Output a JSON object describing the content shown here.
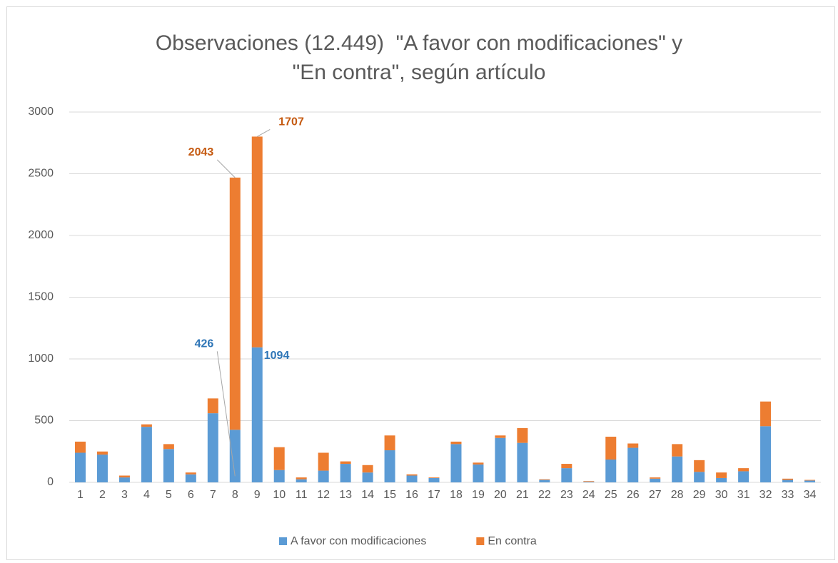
{
  "chart_data": {
    "type": "stacked_bar",
    "title": "Observaciones (12.449)  \"A favor con modificaciones\" y \"En contra\", según artículo",
    "categories": [
      "1",
      "2",
      "3",
      "4",
      "5",
      "6",
      "7",
      "8",
      "9",
      "10",
      "11",
      "12",
      "13",
      "14",
      "15",
      "16",
      "17",
      "18",
      "19",
      "20",
      "21",
      "22",
      "23",
      "24",
      "25",
      "26",
      "27",
      "28",
      "29",
      "30",
      "31",
      "32",
      "33",
      "34"
    ],
    "series": [
      {
        "name": "A favor con modificaciones",
        "color": "#5b9bd5",
        "label_color": "#2e75b6",
        "values": [
          240,
          225,
          40,
          450,
          270,
          65,
          560,
          426,
          1094,
          100,
          25,
          95,
          150,
          80,
          260,
          55,
          35,
          310,
          145,
          360,
          320,
          20,
          115,
          5,
          185,
          280,
          30,
          210,
          85,
          35,
          90,
          455,
          20,
          15
        ],
        "value_labels": [
          null,
          null,
          null,
          null,
          null,
          null,
          null,
          "426",
          "1094",
          null,
          null,
          null,
          null,
          null,
          null,
          null,
          null,
          null,
          null,
          null,
          null,
          null,
          null,
          null,
          null,
          null,
          null,
          null,
          null,
          null,
          null,
          null,
          null,
          null
        ]
      },
      {
        "name": "En contra",
        "color": "#ed7d31",
        "label_color": "#c55a11",
        "values": [
          90,
          25,
          15,
          20,
          40,
          15,
          120,
          2043,
          1707,
          185,
          15,
          145,
          20,
          60,
          120,
          10,
          5,
          20,
          15,
          20,
          120,
          5,
          35,
          5,
          185,
          35,
          10,
          100,
          95,
          45,
          25,
          200,
          10,
          5
        ],
        "value_labels": [
          null,
          null,
          null,
          null,
          null,
          null,
          null,
          "2043",
          "1707",
          null,
          null,
          null,
          null,
          null,
          null,
          null,
          null,
          null,
          null,
          null,
          null,
          null,
          null,
          null,
          null,
          null,
          null,
          null,
          null,
          null,
          null,
          null,
          null,
          null
        ]
      }
    ],
    "ylim": [
      0,
      3000
    ],
    "yticks": [
      0,
      500,
      1000,
      1500,
      2000,
      2500,
      3000
    ],
    "grid": true,
    "legend": "bottom"
  }
}
